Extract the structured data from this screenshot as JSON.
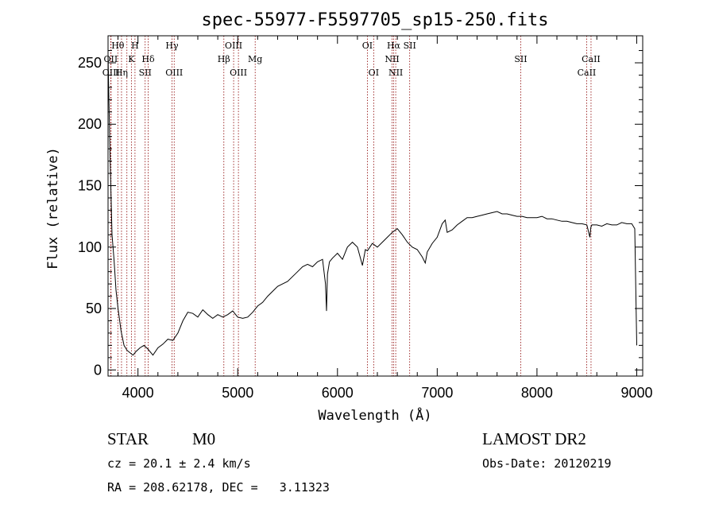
{
  "chart_data": {
    "type": "line",
    "title": "spec-55977-F5597705_sp15-250.fits",
    "xlabel": "Wavelength (Å)",
    "ylabel": "Flux (relative)",
    "xlim": [
      3700,
      9060
    ],
    "ylim": [
      -5,
      272
    ],
    "xticks": [
      4000,
      5000,
      6000,
      7000,
      8000,
      9000
    ],
    "yticks": [
      0,
      50,
      100,
      150,
      200,
      250
    ],
    "grid": false,
    "series": [
      {
        "x": [
          3700,
          3720,
          3740,
          3760,
          3780,
          3800,
          3830,
          3860,
          3890,
          3920,
          3950,
          3980,
          4020,
          4060,
          4100,
          4150,
          4200,
          4250,
          4300,
          4350,
          4400,
          4450,
          4500,
          4550,
          4600,
          4650,
          4700,
          4750,
          4800,
          4850,
          4900,
          4950,
          5000,
          5050,
          5100,
          5150,
          5200,
          5250,
          5300,
          5350,
          5400,
          5450,
          5500,
          5550,
          5600,
          5650,
          5700,
          5750,
          5800,
          5850,
          5880,
          5890,
          5900,
          5920,
          5950,
          6000,
          6050,
          6100,
          6150,
          6200,
          6250,
          6280,
          6300,
          6350,
          6400,
          6450,
          6500,
          6550,
          6600,
          6650,
          6700,
          6750,
          6800,
          6850,
          6880,
          6900,
          6950,
          7000,
          7050,
          7080,
          7100,
          7150,
          7200,
          7250,
          7300,
          7350,
          7400,
          7450,
          7500,
          7550,
          7600,
          7650,
          7700,
          7750,
          7800,
          7850,
          7900,
          7950,
          8000,
          8050,
          8100,
          8150,
          8200,
          8250,
          8300,
          8350,
          8400,
          8450,
          8500,
          8530,
          8540,
          8550,
          8600,
          8650,
          8700,
          8750,
          8800,
          8850,
          8900,
          8950,
          8980,
          9000
        ],
        "y": [
          255,
          175,
          110,
          90,
          65,
          50,
          32,
          20,
          16,
          14,
          12,
          15,
          18,
          20,
          17,
          12,
          18,
          21,
          25,
          24,
          30,
          40,
          47,
          46,
          43,
          49,
          45,
          42,
          45,
          43,
          45,
          48,
          43,
          42,
          43,
          47,
          52,
          55,
          60,
          64,
          68,
          70,
          72,
          76,
          80,
          84,
          86,
          84,
          88,
          90,
          70,
          48,
          78,
          88,
          91,
          95,
          90,
          100,
          104,
          100,
          85,
          98,
          97,
          103,
          100,
          104,
          108,
          112,
          115,
          110,
          104,
          100,
          98,
          92,
          87,
          96,
          103,
          108,
          119,
          122,
          112,
          114,
          118,
          121,
          124,
          124,
          125,
          126,
          127,
          128,
          129,
          127,
          127,
          126,
          125,
          125,
          124,
          124,
          124,
          125,
          123,
          123,
          122,
          121,
          121,
          120,
          119,
          119,
          118,
          108,
          116,
          118,
          118,
          117,
          119,
          118,
          118,
          120,
          119,
          119,
          115,
          20
        ]
      }
    ],
    "lines_top": [
      {
        "label": "Hθ",
        "x": 3798,
        "row": 0
      },
      {
        "label": "H",
        "x": 3970,
        "row": 0
      },
      {
        "label": "Hγ",
        "x": 4341,
        "row": 0
      },
      {
        "label": "OIII",
        "x": 4959,
        "row": 0
      },
      {
        "label": "OI",
        "x": 6300,
        "row": 0
      },
      {
        "label": "Hα",
        "x": 6563,
        "row": 0
      },
      {
        "label": "SII",
        "x": 6724,
        "row": 0
      },
      {
        "label": "OII",
        "x": 3727,
        "row": 1
      },
      {
        "label": "K",
        "x": 3934,
        "row": 1
      },
      {
        "label": "Hδ",
        "x": 4102,
        "row": 1
      },
      {
        "label": "Hβ",
        "x": 4861,
        "row": 1
      },
      {
        "label": "Mg",
        "x": 5175,
        "row": 1
      },
      {
        "label": "NII",
        "x": 6548,
        "row": 1
      },
      {
        "label": "SII",
        "x": 7837,
        "row": 1
      },
      {
        "label": "CaII",
        "x": 8542,
        "row": 1
      },
      {
        "label": "OIII",
        "x": 3730,
        "row": 2
      },
      {
        "label": "Hη",
        "x": 3835,
        "row": 2
      },
      {
        "label": "SII",
        "x": 4072,
        "row": 2
      },
      {
        "label": "OIII",
        "x": 4363,
        "row": 2
      },
      {
        "label": "OIII",
        "x": 5007,
        "row": 2
      },
      {
        "label": "OI",
        "x": 6363,
        "row": 2
      },
      {
        "label": "NII",
        "x": 6584,
        "row": 2
      },
      {
        "label": "CaII",
        "x": 8498,
        "row": 2
      }
    ],
    "marker_lines": [
      3727,
      3730,
      3798,
      3835,
      3889,
      3934,
      3970,
      4072,
      4102,
      4341,
      4363,
      4861,
      4959,
      5007,
      5175,
      6300,
      6363,
      6548,
      6563,
      6584,
      6724,
      7837,
      8498,
      8542
    ],
    "colors": {
      "spectrum": "#000000",
      "marker": "#8b0000",
      "axes": "#000000"
    }
  },
  "info": {
    "class_label": "STAR",
    "subclass": "M0",
    "survey": "LAMOST DR2",
    "cz": "cz = 20.1 ± 2.4 km/s",
    "obs_date": "Obs-Date: 20120219",
    "coords": "RA = 208.62178, DEC =   3.11323"
  }
}
